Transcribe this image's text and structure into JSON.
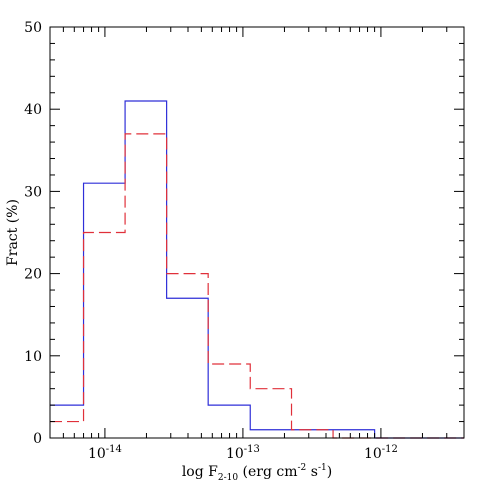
{
  "chart_data": {
    "type": "histogram",
    "title": "",
    "xlabel": "log F2-10 (erg cm-2 s-1)",
    "xlabel_parts": {
      "prefix": "log F",
      "subscript": "2-10",
      "middle": " (erg cm",
      "sup1": "-2",
      "middle2": " s",
      "sup2": "-1",
      "suffix": ")"
    },
    "ylabel": "Fract (%)",
    "xscale": "log",
    "xlim": [
      4e-15,
      4e-12
    ],
    "ylim": [
      0,
      50
    ],
    "x_ticks": [
      {
        "value": 1e-14,
        "base": "10",
        "exp": "-14"
      },
      {
        "value": 1e-13,
        "base": "10",
        "exp": "-13"
      },
      {
        "value": 1e-12,
        "base": "10",
        "exp": "-12"
      }
    ],
    "y_ticks": [
      0,
      10,
      20,
      30,
      40,
      50
    ],
    "bin_edges": [
      4e-15,
      7e-15,
      1.4e-14,
      2.8e-14,
      5.6e-14,
      1.13e-13,
      2.25e-13,
      4.5e-13,
      9e-13,
      1.8e-12,
      4e-12
    ],
    "series": [
      {
        "color": "#2f2fd8",
        "style": "solid",
        "values": [
          4,
          31,
          41,
          17,
          4,
          1,
          1,
          1,
          0,
          0
        ]
      },
      {
        "color": "#e0303a",
        "style": "dashed",
        "values": [
          2,
          25,
          37,
          20,
          9,
          6,
          1,
          0,
          0,
          0
        ]
      }
    ]
  }
}
